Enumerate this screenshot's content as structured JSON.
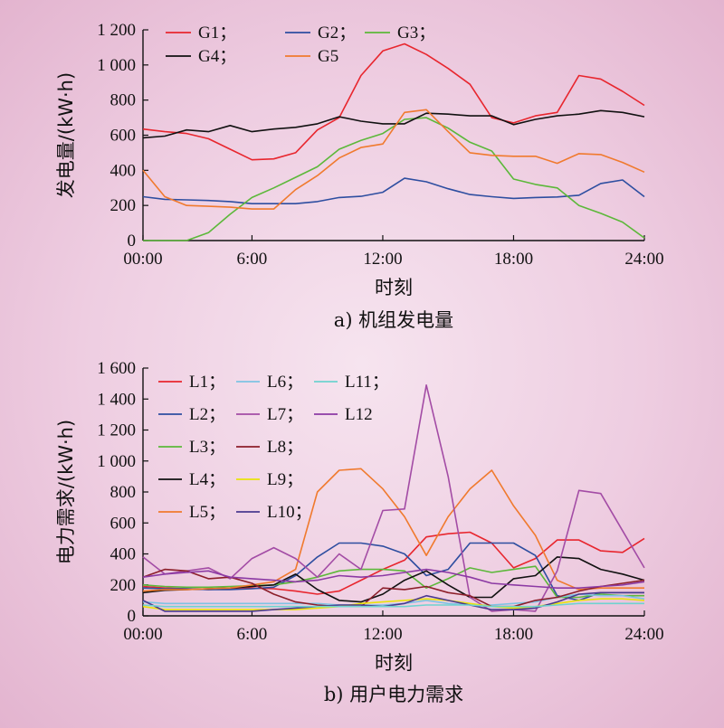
{
  "chart_data": [
    {
      "type": "line",
      "caption": "a) 机组发电量",
      "xlabel": "时刻",
      "ylabel": "发电量/(kW·h)",
      "xlim": [
        1,
        24
      ],
      "ylim": [
        0,
        1200
      ],
      "x_ticks": [
        {
          "v": 1,
          "label": "00:00"
        },
        {
          "v": 6,
          "label": "6:00"
        },
        {
          "v": 12,
          "label": "12:00"
        },
        {
          "v": 18,
          "label": "18:00"
        },
        {
          "v": 24,
          "label": "24:00"
        }
      ],
      "y_ticks": [
        {
          "v": 0,
          "label": "0"
        },
        {
          "v": 200,
          "label": "200"
        },
        {
          "v": 400,
          "label": "400"
        },
        {
          "v": 600,
          "label": "600"
        },
        {
          "v": 800,
          "label": "800"
        },
        {
          "v": 1000,
          "label": "1 000"
        },
        {
          "v": 1200,
          "label": "1 200"
        }
      ],
      "grid": false,
      "legend_position": "top-left",
      "legend_cols": 3,
      "x": [
        1,
        2,
        3,
        4,
        5,
        6,
        7,
        8,
        9,
        10,
        11,
        12,
        13,
        14,
        15,
        16,
        17,
        18,
        19,
        20,
        21,
        22,
        23,
        24
      ],
      "series": [
        {
          "name": "G1；",
          "color": "#e8262e",
          "values": [
            635,
            620,
            610,
            580,
            520,
            460,
            465,
            500,
            630,
            700,
            940,
            1080,
            1120,
            1060,
            980,
            890,
            700,
            670,
            710,
            730,
            940,
            920,
            850,
            770
          ]
        },
        {
          "name": "G2；",
          "color": "#2e4ea0",
          "values": [
            250,
            235,
            232,
            228,
            222,
            210,
            210,
            210,
            222,
            245,
            252,
            275,
            355,
            335,
            295,
            262,
            250,
            240,
            245,
            248,
            258,
            325,
            345,
            250
          ]
        },
        {
          "name": "G3；",
          "color": "#5cb83a",
          "values": [
            0,
            0,
            0,
            45,
            150,
            245,
            300,
            360,
            420,
            520,
            570,
            610,
            690,
            700,
            640,
            560,
            510,
            350,
            320,
            300,
            200,
            155,
            105,
            15
          ]
        },
        {
          "name": "G4；",
          "color": "#111111",
          "values": [
            585,
            595,
            630,
            620,
            655,
            620,
            635,
            645,
            665,
            705,
            680,
            665,
            665,
            725,
            720,
            710,
            710,
            660,
            690,
            710,
            720,
            740,
            730,
            705
          ]
        },
        {
          "name": "G5",
          "color": "#f07a2e",
          "values": [
            400,
            250,
            200,
            195,
            190,
            180,
            180,
            290,
            370,
            470,
            530,
            550,
            730,
            745,
            620,
            500,
            485,
            480,
            480,
            440,
            495,
            490,
            445,
            390
          ]
        }
      ]
    },
    {
      "type": "line",
      "caption": "b) 用户电力需求",
      "xlabel": "时刻",
      "ylabel": "电力需求/(kW·h)",
      "xlim": [
        1,
        24
      ],
      "ylim": [
        0,
        1600
      ],
      "x_ticks": [
        {
          "v": 1,
          "label": "00:00"
        },
        {
          "v": 6,
          "label": "6:00"
        },
        {
          "v": 12,
          "label": "12:00"
        },
        {
          "v": 18,
          "label": "18:00"
        },
        {
          "v": 24,
          "label": "24:00"
        }
      ],
      "y_ticks": [
        {
          "v": 0,
          "label": "0"
        },
        {
          "v": 200,
          "label": "200"
        },
        {
          "v": 400,
          "label": "400"
        },
        {
          "v": 600,
          "label": "600"
        },
        {
          "v": 800,
          "label": "800"
        },
        {
          "v": 1000,
          "label": "1 000"
        },
        {
          "v": 1200,
          "label": "1 200"
        },
        {
          "v": 1400,
          "label": "1 400"
        },
        {
          "v": 1600,
          "label": "1 600"
        }
      ],
      "grid": false,
      "legend_position": "top-left",
      "legend_cols": 3,
      "x": [
        1,
        2,
        3,
        4,
        5,
        6,
        7,
        8,
        9,
        10,
        11,
        12,
        13,
        14,
        15,
        16,
        17,
        18,
        19,
        20,
        21,
        22,
        23,
        24
      ],
      "series": [
        {
          "name": "L1；",
          "color": "#e8262e",
          "values": [
            190,
            180,
            175,
            170,
            175,
            180,
            175,
            160,
            140,
            160,
            230,
            300,
            360,
            510,
            530,
            540,
            470,
            310,
            370,
            490,
            490,
            420,
            410,
            500
          ]
        },
        {
          "name": "L2；",
          "color": "#2e4ea0",
          "values": [
            180,
            175,
            175,
            170,
            170,
            175,
            185,
            260,
            380,
            470,
            470,
            450,
            400,
            260,
            300,
            470,
            470,
            470,
            390,
            130,
            100,
            150,
            150,
            150
          ]
        },
        {
          "name": "L3；",
          "color": "#5cb83a",
          "values": [
            200,
            190,
            185,
            185,
            190,
            195,
            200,
            220,
            250,
            290,
            300,
            300,
            290,
            180,
            240,
            310,
            280,
            300,
            320,
            120,
            120,
            140,
            130,
            130
          ]
        },
        {
          "name": "L4；",
          "color": "#111111",
          "values": [
            150,
            165,
            170,
            175,
            180,
            190,
            200,
            270,
            170,
            100,
            90,
            140,
            230,
            290,
            200,
            120,
            120,
            240,
            260,
            380,
            370,
            300,
            270,
            230
          ]
        },
        {
          "name": "L5；",
          "color": "#f07a2e",
          "values": [
            160,
            170,
            170,
            175,
            180,
            200,
            220,
            300,
            800,
            940,
            950,
            820,
            640,
            390,
            640,
            820,
            940,
            710,
            520,
            230,
            170,
            180,
            180,
            180
          ]
        },
        {
          "name": "L6；",
          "color": "#7ec3e3",
          "values": [
            90,
            80,
            80,
            80,
            80,
            80,
            80,
            80,
            80,
            70,
            70,
            70,
            80,
            100,
            80,
            70,
            70,
            80,
            90,
            120,
            140,
            130,
            130,
            110
          ]
        },
        {
          "name": "L7；",
          "color": "#a34ca5",
          "values": [
            380,
            270,
            290,
            310,
            240,
            370,
            440,
            370,
            250,
            400,
            300,
            680,
            690,
            1490,
            900,
            120,
            30,
            40,
            30,
            290,
            810,
            790,
            550,
            310
          ]
        },
        {
          "name": "L8；",
          "color": "#8c1e2a",
          "values": [
            250,
            300,
            290,
            240,
            250,
            210,
            140,
            90,
            70,
            60,
            60,
            180,
            170,
            190,
            150,
            130,
            60,
            60,
            100,
            120,
            160,
            190,
            210,
            230
          ]
        },
        {
          "name": "L9；",
          "color": "#e9e30a",
          "values": [
            60,
            40,
            40,
            40,
            40,
            40,
            40,
            40,
            50,
            60,
            80,
            90,
            100,
            110,
            100,
            80,
            60,
            50,
            60,
            80,
            100,
            110,
            110,
            100
          ]
        },
        {
          "name": "L10；",
          "color": "#4a3a8f",
          "values": [
            100,
            30,
            30,
            30,
            30,
            30,
            40,
            50,
            60,
            70,
            70,
            60,
            80,
            130,
            100,
            70,
            40,
            40,
            50,
            90,
            140,
            150,
            150,
            150
          ]
        },
        {
          "name": "L11；",
          "color": "#6ed3cf",
          "values": [
            70,
            60,
            60,
            60,
            60,
            60,
            60,
            60,
            60,
            60,
            60,
            60,
            60,
            70,
            70,
            70,
            60,
            60,
            60,
            70,
            80,
            80,
            80,
            80
          ]
        },
        {
          "name": "L12",
          "color": "#8c3aa4",
          "values": [
            250,
            270,
            280,
            290,
            250,
            240,
            230,
            220,
            230,
            260,
            250,
            260,
            280,
            300,
            280,
            250,
            210,
            200,
            190,
            180,
            180,
            190,
            200,
            220
          ]
        }
      ]
    }
  ]
}
